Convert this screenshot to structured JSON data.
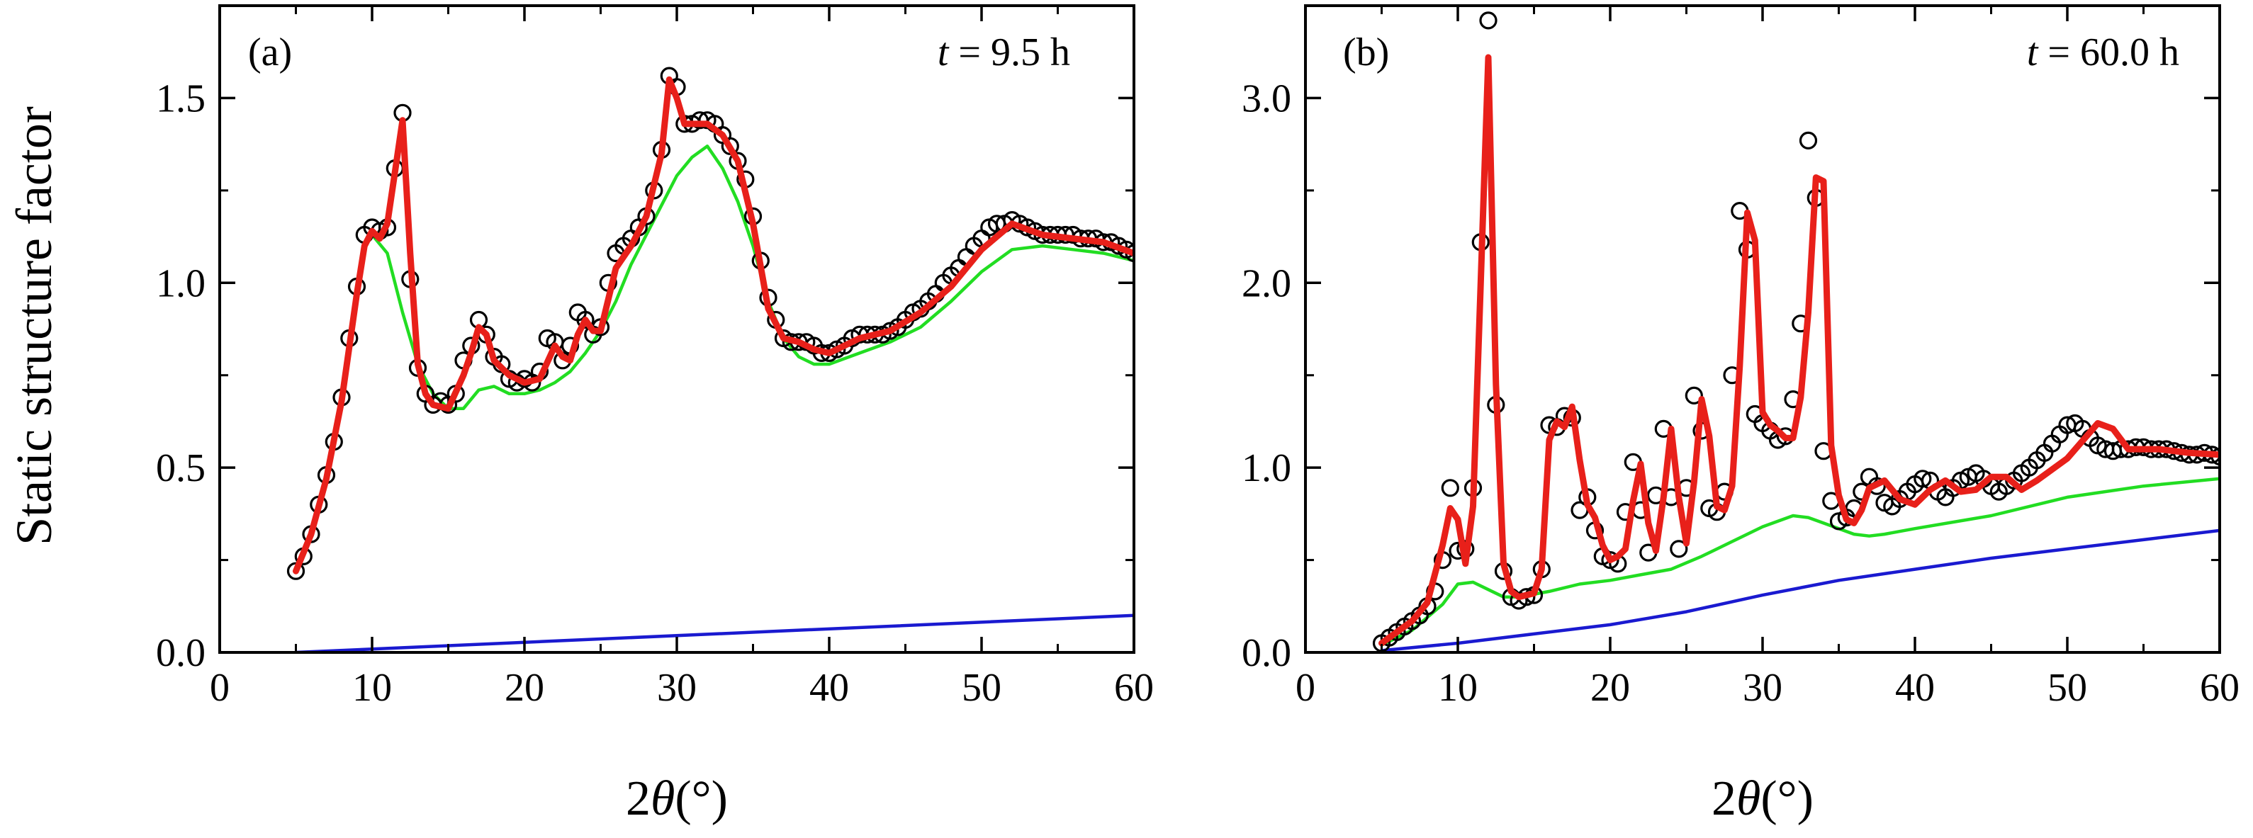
{
  "ylabel": "Static structure factor",
  "chart_data": [
    {
      "type": "line",
      "panel": "(a)",
      "annotation": {
        "var": "t",
        "text": " = 9.5 h"
      },
      "xlabel": {
        "coef": "2",
        "var": "θ",
        "unit": "(°)"
      },
      "ylabel": "Static structure factor",
      "xlim": [
        0,
        60
      ],
      "ylim": [
        0,
        1.75
      ],
      "xticks": [
        0,
        10,
        20,
        30,
        40,
        50,
        60
      ],
      "xtick_labels": [
        "0",
        "10",
        "20",
        "30",
        "40",
        "50",
        "60"
      ],
      "yticks": [
        0,
        0.5,
        1.0,
        1.5
      ],
      "ytick_labels": [
        "0.0",
        "0.5",
        "1.0",
        "1.5"
      ],
      "grid": false,
      "colors": {
        "data": "#000000",
        "fit": "#e8201a",
        "green": "#22dd22",
        "blue": "#1a1ad0"
      },
      "series": [
        {
          "kind": "markers-open-circle",
          "x": [
            5.0,
            5.5,
            6.0,
            6.5,
            7.0,
            7.5,
            8.0,
            8.5,
            9.0,
            9.5,
            10.0,
            10.5,
            11.0,
            11.5,
            12.0,
            12.5,
            13.0,
            13.5,
            14.0,
            14.5,
            15.0,
            15.5,
            16.0,
            16.5,
            17.0,
            17.5,
            18.0,
            18.5,
            19.0,
            19.5,
            20.0,
            20.5,
            21.0,
            21.5,
            22.0,
            22.5,
            23.0,
            23.5,
            24.0,
            24.5,
            25.0,
            25.5,
            26.0,
            26.5,
            27.0,
            27.5,
            28.0,
            28.5,
            29.0,
            29.5,
            30.0,
            30.5,
            31.0,
            31.5,
            32.0,
            32.5,
            33.0,
            33.5,
            34.0,
            34.5,
            35.0,
            35.5,
            36.0,
            36.5,
            37.0,
            37.5,
            38.0,
            38.5,
            39.0,
            39.5,
            40.0,
            40.5,
            41.0,
            41.5,
            42.0,
            42.5,
            43.0,
            43.5,
            44.0,
            44.5,
            45.0,
            45.5,
            46.0,
            46.5,
            47.0,
            47.5,
            48.0,
            48.5,
            49.0,
            49.5,
            50.0,
            50.5,
            51.0,
            51.5,
            52.0,
            52.5,
            53.0,
            53.5,
            54.0,
            54.5,
            55.0,
            55.5,
            56.0,
            56.5,
            57.0,
            57.5,
            58.0,
            58.5,
            59.0,
            59.5,
            60.0
          ],
          "y": [
            0.22,
            0.26,
            0.32,
            0.4,
            0.48,
            0.57,
            0.69,
            0.85,
            0.99,
            1.13,
            1.15,
            1.14,
            1.15,
            1.31,
            1.46,
            1.01,
            0.77,
            0.7,
            0.67,
            0.68,
            0.67,
            0.7,
            0.79,
            0.83,
            0.9,
            0.86,
            0.8,
            0.78,
            0.74,
            0.73,
            0.74,
            0.73,
            0.76,
            0.85,
            0.84,
            0.79,
            0.83,
            0.92,
            0.9,
            0.86,
            0.88,
            1.0,
            1.08,
            1.1,
            1.12,
            1.15,
            1.18,
            1.25,
            1.36,
            1.56,
            1.53,
            1.43,
            1.43,
            1.44,
            1.44,
            1.43,
            1.4,
            1.37,
            1.33,
            1.28,
            1.18,
            1.06,
            0.96,
            0.9,
            0.85,
            0.84,
            0.84,
            0.84,
            0.83,
            0.81,
            0.81,
            0.82,
            0.83,
            0.85,
            0.86,
            0.86,
            0.86,
            0.86,
            0.87,
            0.88,
            0.9,
            0.92,
            0.93,
            0.95,
            0.97,
            1.0,
            1.02,
            1.04,
            1.07,
            1.1,
            1.12,
            1.15,
            1.16,
            1.16,
            1.17,
            1.16,
            1.15,
            1.14,
            1.13,
            1.13,
            1.13,
            1.13,
            1.13,
            1.12,
            1.12,
            1.12,
            1.11,
            1.11,
            1.1,
            1.09,
            1.08
          ]
        },
        {
          "kind": "fit-red",
          "x": [
            5.0,
            6.0,
            7.0,
            8.0,
            9.0,
            9.5,
            10.0,
            10.5,
            11.0,
            11.5,
            12.0,
            12.5,
            13.0,
            13.5,
            14.0,
            15.0,
            16.0,
            16.5,
            17.0,
            17.5,
            18.0,
            19.0,
            20.0,
            21.0,
            22.0,
            22.5,
            23.0,
            23.5,
            24.0,
            24.5,
            25.0,
            26.0,
            27.0,
            28.0,
            29.0,
            29.5,
            30.0,
            30.5,
            31.0,
            32.0,
            33.0,
            34.0,
            35.0,
            36.0,
            37.0,
            38.0,
            39.0,
            40.0,
            42.0,
            44.0,
            46.0,
            48.0,
            50.0,
            52.0,
            54.0,
            56.0,
            58.0,
            60.0
          ],
          "y": [
            0.22,
            0.32,
            0.47,
            0.68,
            0.97,
            1.1,
            1.14,
            1.12,
            1.16,
            1.3,
            1.44,
            1.08,
            0.78,
            0.7,
            0.67,
            0.66,
            0.75,
            0.81,
            0.88,
            0.86,
            0.79,
            0.75,
            0.73,
            0.74,
            0.83,
            0.8,
            0.79,
            0.86,
            0.9,
            0.87,
            0.87,
            1.04,
            1.1,
            1.18,
            1.35,
            1.55,
            1.5,
            1.43,
            1.43,
            1.43,
            1.4,
            1.33,
            1.16,
            0.93,
            0.85,
            0.84,
            0.82,
            0.81,
            0.85,
            0.87,
            0.92,
            0.99,
            1.09,
            1.16,
            1.13,
            1.12,
            1.11,
            1.08
          ]
        },
        {
          "kind": "line-green",
          "x": [
            10.0,
            11.0,
            12.0,
            13.0,
            14.0,
            15.0,
            16.0,
            17.0,
            18.0,
            19.0,
            20.0,
            21.0,
            22.0,
            23.0,
            24.0,
            25.0,
            26.0,
            27.0,
            28.0,
            29.0,
            30.0,
            31.0,
            32.0,
            33.0,
            34.0,
            35.0,
            36.0,
            37.0,
            38.0,
            39.0,
            40.0,
            42.0,
            44.0,
            46.0,
            48.0,
            50.0,
            52.0,
            54.0,
            56.0,
            58.0,
            60.0
          ],
          "y": [
            1.13,
            1.08,
            0.92,
            0.78,
            0.7,
            0.66,
            0.66,
            0.71,
            0.72,
            0.7,
            0.7,
            0.71,
            0.73,
            0.76,
            0.81,
            0.87,
            0.95,
            1.05,
            1.13,
            1.21,
            1.29,
            1.34,
            1.37,
            1.31,
            1.22,
            1.1,
            0.95,
            0.85,
            0.8,
            0.78,
            0.78,
            0.81,
            0.84,
            0.88,
            0.95,
            1.03,
            1.09,
            1.1,
            1.09,
            1.08,
            1.06
          ]
        },
        {
          "kind": "line-blue",
          "x": [
            5,
            60
          ],
          "y": [
            0.0,
            0.1
          ]
        }
      ]
    },
    {
      "type": "line",
      "panel": "(b)",
      "annotation": {
        "var": "t",
        "text": " = 60.0 h"
      },
      "xlabel": {
        "coef": "2",
        "var": "θ",
        "unit": "(°)"
      },
      "ylabel": "",
      "xlim": [
        0,
        60
      ],
      "ylim": [
        0,
        3.5
      ],
      "xticks": [
        0,
        10,
        20,
        30,
        40,
        50,
        60
      ],
      "xtick_labels": [
        "0",
        "10",
        "20",
        "30",
        "40",
        "50",
        "60"
      ],
      "yticks": [
        0,
        1.0,
        2.0,
        3.0
      ],
      "ytick_labels": [
        "0.0",
        "1.0",
        "2.0",
        "3.0"
      ],
      "grid": false,
      "colors": {
        "data": "#000000",
        "fit": "#e8201a",
        "green": "#22dd22",
        "blue": "#1a1ad0"
      },
      "series": [
        {
          "kind": "markers-open-circle",
          "x": [
            5.0,
            5.5,
            6.0,
            6.5,
            7.0,
            7.5,
            8.0,
            8.5,
            9.0,
            9.5,
            10.0,
            10.5,
            11.0,
            11.5,
            12.0,
            12.5,
            13.0,
            13.5,
            14.0,
            14.5,
            15.0,
            15.5,
            16.0,
            16.5,
            17.0,
            17.5,
            18.0,
            18.5,
            19.0,
            19.5,
            20.0,
            20.5,
            21.0,
            21.5,
            22.0,
            22.5,
            23.0,
            23.5,
            24.0,
            24.5,
            25.0,
            25.5,
            26.0,
            26.5,
            27.0,
            27.5,
            28.0,
            28.5,
            29.0,
            29.5,
            30.0,
            30.5,
            31.0,
            31.5,
            32.0,
            32.5,
            33.0,
            33.5,
            34.0,
            34.5,
            35.0,
            35.5,
            36.0,
            36.5,
            37.0,
            37.5,
            38.0,
            38.5,
            39.0,
            39.5,
            40.0,
            40.5,
            41.0,
            41.5,
            42.0,
            42.5,
            43.0,
            43.5,
            44.0,
            44.5,
            45.0,
            45.5,
            46.0,
            46.5,
            47.0,
            47.5,
            48.0,
            48.5,
            49.0,
            49.5,
            50.0,
            50.5,
            51.0,
            51.5,
            52.0,
            52.5,
            53.0,
            53.5,
            54.0,
            54.5,
            55.0,
            55.5,
            56.0,
            56.5,
            57.0,
            57.5,
            58.0,
            58.5,
            59.0,
            59.5,
            60.0
          ],
          "y": [
            0.05,
            0.08,
            0.11,
            0.14,
            0.17,
            0.2,
            0.25,
            0.33,
            0.5,
            0.89,
            0.55,
            0.56,
            0.89,
            2.22,
            3.42,
            1.34,
            0.44,
            0.3,
            0.28,
            0.3,
            0.31,
            0.45,
            1.23,
            1.22,
            1.28,
            1.27,
            0.77,
            0.84,
            0.66,
            0.52,
            0.5,
            0.48,
            0.76,
            1.03,
            0.77,
            0.54,
            0.85,
            1.21,
            0.84,
            0.56,
            0.89,
            1.39,
            1.2,
            0.78,
            0.76,
            0.87,
            1.5,
            2.39,
            2.18,
            1.29,
            1.24,
            1.2,
            1.15,
            1.17,
            1.37,
            1.78,
            2.77,
            2.46,
            1.09,
            0.82,
            0.71,
            0.73,
            0.78,
            0.87,
            0.95,
            0.9,
            0.81,
            0.79,
            0.83,
            0.87,
            0.91,
            0.94,
            0.93,
            0.87,
            0.84,
            0.89,
            0.93,
            0.95,
            0.97,
            0.94,
            0.9,
            0.87,
            0.9,
            0.93,
            0.97,
            1.0,
            1.04,
            1.08,
            1.13,
            1.18,
            1.23,
            1.24,
            1.21,
            1.16,
            1.12,
            1.1,
            1.09,
            1.1,
            1.1,
            1.11,
            1.11,
            1.1,
            1.1,
            1.1,
            1.09,
            1.08,
            1.07,
            1.07,
            1.08,
            1.07,
            1.06
          ]
        },
        {
          "kind": "fit-red",
          "x": [
            5.0,
            6.0,
            7.0,
            8.0,
            9.0,
            9.5,
            10.0,
            10.5,
            11.0,
            11.5,
            12.0,
            12.5,
            13.0,
            13.5,
            14.0,
            15.0,
            15.5,
            16.0,
            16.5,
            17.0,
            17.5,
            18.0,
            18.5,
            19.0,
            19.5,
            20.0,
            20.5,
            21.0,
            21.5,
            22.0,
            22.5,
            23.0,
            23.5,
            24.0,
            24.5,
            25.0,
            25.5,
            26.0,
            26.5,
            27.0,
            27.5,
            28.0,
            28.5,
            29.0,
            29.5,
            30.0,
            30.5,
            31.0,
            31.5,
            32.0,
            32.5,
            33.0,
            33.5,
            34.0,
            34.5,
            35.0,
            35.5,
            36.0,
            36.5,
            37.0,
            38.0,
            39.0,
            40.0,
            41.0,
            42.0,
            43.0,
            44.0,
            45.0,
            46.0,
            47.0,
            48.0,
            50.0,
            52.0,
            53.0,
            54.0,
            56.0,
            58.0,
            60.0
          ],
          "y": [
            0.05,
            0.11,
            0.17,
            0.27,
            0.58,
            0.78,
            0.72,
            0.48,
            0.79,
            2.0,
            3.22,
            1.45,
            0.48,
            0.33,
            0.3,
            0.32,
            0.45,
            1.15,
            1.25,
            1.22,
            1.33,
            1.04,
            0.8,
            0.73,
            0.58,
            0.5,
            0.52,
            0.56,
            0.82,
            1.02,
            0.7,
            0.55,
            0.84,
            1.21,
            0.84,
            0.59,
            0.92,
            1.37,
            1.17,
            0.79,
            0.77,
            0.9,
            1.55,
            2.38,
            2.23,
            1.3,
            1.23,
            1.2,
            1.16,
            1.16,
            1.38,
            1.84,
            2.57,
            2.55,
            1.12,
            0.85,
            0.72,
            0.7,
            0.77,
            0.89,
            0.93,
            0.83,
            0.8,
            0.88,
            0.93,
            0.87,
            0.88,
            0.95,
            0.95,
            0.88,
            0.93,
            1.05,
            1.24,
            1.21,
            1.1,
            1.1,
            1.08,
            1.07
          ]
        },
        {
          "kind": "line-green",
          "x": [
            5.0,
            7.0,
            9.0,
            10.0,
            11.0,
            12.0,
            13.0,
            14.0,
            16.0,
            18.0,
            20.0,
            22.0,
            24.0,
            26.0,
            28.0,
            30.0,
            32.0,
            33.0,
            34.0,
            35.0,
            36.0,
            37.0,
            38.0,
            40.0,
            45.0,
            50.0,
            55.0,
            60.0
          ],
          "y": [
            0.04,
            0.12,
            0.26,
            0.37,
            0.38,
            0.34,
            0.3,
            0.3,
            0.33,
            0.37,
            0.39,
            0.42,
            0.45,
            0.52,
            0.6,
            0.68,
            0.74,
            0.73,
            0.7,
            0.67,
            0.64,
            0.63,
            0.64,
            0.67,
            0.74,
            0.84,
            0.9,
            0.94
          ]
        },
        {
          "kind": "line-blue",
          "x": [
            5.0,
            10.0,
            15.0,
            20.0,
            25.0,
            30.0,
            35.0,
            40.0,
            45.0,
            50.0,
            55.0,
            60.0
          ],
          "y": [
            0.01,
            0.05,
            0.1,
            0.15,
            0.22,
            0.31,
            0.39,
            0.45,
            0.51,
            0.56,
            0.61,
            0.66
          ]
        }
      ]
    }
  ]
}
